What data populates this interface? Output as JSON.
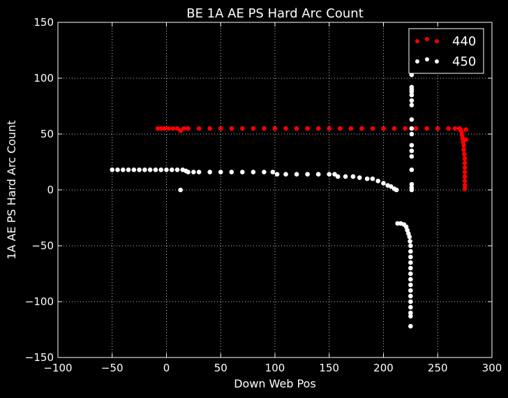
{
  "chart_data": {
    "type": "scatter",
    "title": "BE 1A AE PS Hard Arc Count",
    "xlabel": "Down Web Pos",
    "ylabel": "1A AE PS Hard Arc Count",
    "xlim": [
      -100,
      300
    ],
    "ylim": [
      -150,
      150
    ],
    "xticks": [
      -100,
      -50,
      0,
      50,
      100,
      150,
      200,
      250,
      300
    ],
    "yticks": [
      -150,
      -100,
      -50,
      0,
      50,
      100,
      150
    ],
    "xtick_labels": [
      "−100",
      "−50",
      "0",
      "50",
      "100",
      "150",
      "200",
      "250",
      "300"
    ],
    "ytick_labels": [
      "−150",
      "−100",
      "−50",
      "0",
      "50",
      "100",
      "150"
    ],
    "grid": true,
    "legend_position": "top-right",
    "background": "#000000",
    "series": [
      {
        "name": "440",
        "color": "#ff0000",
        "points": [
          [
            -8,
            55
          ],
          [
            -5,
            55
          ],
          [
            -2,
            55
          ],
          [
            2,
            55
          ],
          [
            6,
            55
          ],
          [
            10,
            55
          ],
          [
            13,
            53
          ],
          [
            16,
            55
          ],
          [
            20,
            55
          ],
          [
            30,
            55
          ],
          [
            40,
            55
          ],
          [
            50,
            55
          ],
          [
            60,
            55
          ],
          [
            70,
            55
          ],
          [
            80,
            55
          ],
          [
            90,
            55
          ],
          [
            100,
            55
          ],
          [
            110,
            55
          ],
          [
            120,
            55
          ],
          [
            130,
            55
          ],
          [
            140,
            55
          ],
          [
            150,
            55
          ],
          [
            160,
            55
          ],
          [
            170,
            55
          ],
          [
            180,
            55
          ],
          [
            190,
            55
          ],
          [
            200,
            55
          ],
          [
            210,
            55
          ],
          [
            220,
            55
          ],
          [
            230,
            55
          ],
          [
            240,
            55
          ],
          [
            250,
            55
          ],
          [
            260,
            55
          ],
          [
            266,
            55
          ],
          [
            270,
            55
          ],
          [
            271,
            54
          ],
          [
            272,
            52
          ],
          [
            272.5,
            49
          ],
          [
            273,
            46
          ],
          [
            273.5,
            43
          ],
          [
            274,
            40
          ],
          [
            274,
            36
          ],
          [
            274.5,
            32
          ],
          [
            275,
            28
          ],
          [
            275,
            24
          ],
          [
            275,
            20
          ],
          [
            275,
            16
          ],
          [
            275,
            12
          ],
          [
            275,
            8
          ],
          [
            275,
            4
          ],
          [
            275,
            1
          ],
          [
            276,
            54
          ],
          [
            276,
            45
          ]
        ]
      },
      {
        "name": "450",
        "color": "#ffffff",
        "points": [
          [
            -50,
            18
          ],
          [
            -45,
            18
          ],
          [
            -40,
            18
          ],
          [
            -35,
            18
          ],
          [
            -30,
            18
          ],
          [
            -25,
            18
          ],
          [
            -20,
            18
          ],
          [
            -15,
            18
          ],
          [
            -10,
            18
          ],
          [
            -5,
            18
          ],
          [
            0,
            18
          ],
          [
            5,
            18
          ],
          [
            10,
            18
          ],
          [
            15,
            18
          ],
          [
            18,
            17
          ],
          [
            20,
            16
          ],
          [
            25,
            16
          ],
          [
            30,
            16
          ],
          [
            40,
            16
          ],
          [
            50,
            16
          ],
          [
            60,
            16
          ],
          [
            70,
            16
          ],
          [
            80,
            16
          ],
          [
            90,
            16
          ],
          [
            98,
            16
          ],
          [
            102,
            14
          ],
          [
            110,
            14
          ],
          [
            120,
            14
          ],
          [
            130,
            14
          ],
          [
            140,
            14
          ],
          [
            150,
            14
          ],
          [
            155,
            14
          ],
          [
            158,
            12
          ],
          [
            165,
            12
          ],
          [
            172,
            12
          ],
          [
            178,
            11
          ],
          [
            185,
            10
          ],
          [
            190,
            10
          ],
          [
            195,
            8
          ],
          [
            200,
            6
          ],
          [
            204,
            4
          ],
          [
            207,
            3
          ],
          [
            210,
            1
          ],
          [
            212,
            0
          ],
          [
            13,
            0
          ],
          [
            226,
            103
          ],
          [
            226,
            92
          ],
          [
            226,
            90
          ],
          [
            226,
            88
          ],
          [
            226,
            85
          ],
          [
            226,
            80
          ],
          [
            226,
            76
          ],
          [
            226,
            63
          ],
          [
            226,
            55
          ],
          [
            226,
            50
          ],
          [
            226,
            40
          ],
          [
            226,
            35
          ],
          [
            226,
            30
          ],
          [
            226,
            18
          ],
          [
            226,
            5
          ],
          [
            226,
            2
          ],
          [
            226,
            0
          ],
          [
            213,
            -30
          ],
          [
            216,
            -30
          ],
          [
            219,
            -31
          ],
          [
            221,
            -33
          ],
          [
            222,
            -36
          ],
          [
            223,
            -39
          ],
          [
            224,
            -42
          ],
          [
            224.5,
            -46
          ],
          [
            225,
            -50
          ],
          [
            225,
            -55
          ],
          [
            225,
            -60
          ],
          [
            225,
            -65
          ],
          [
            225,
            -70
          ],
          [
            225,
            -75
          ],
          [
            225,
            -80
          ],
          [
            225,
            -85
          ],
          [
            225,
            -90
          ],
          [
            225,
            -95
          ],
          [
            225,
            -100
          ],
          [
            225,
            -105
          ],
          [
            225,
            -110
          ],
          [
            225,
            -113
          ],
          [
            225,
            -122
          ]
        ]
      }
    ]
  }
}
